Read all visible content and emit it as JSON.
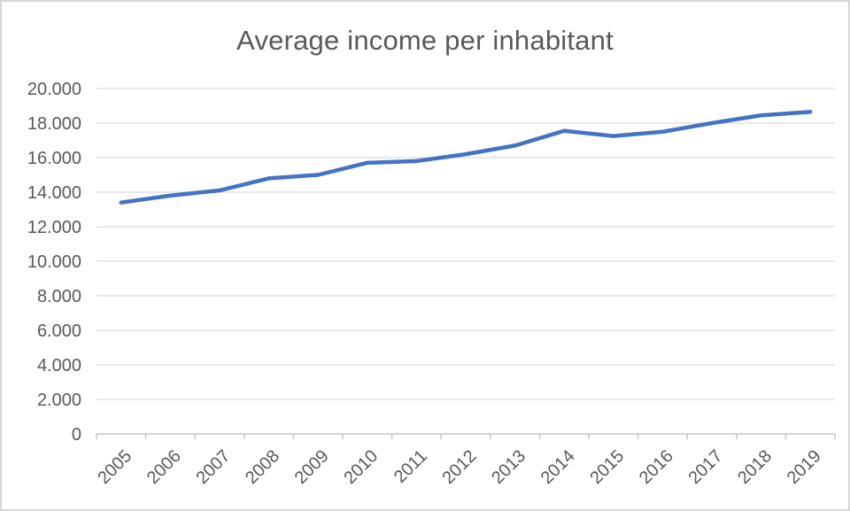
{
  "chart": {
    "title": "Average income per inhabitant"
  },
  "chart_data": {
    "type": "line",
    "title": "Average income per inhabitant",
    "categories": [
      "2005",
      "2006",
      "2007",
      "2008",
      "2009",
      "2010",
      "2011",
      "2012",
      "2013",
      "2014",
      "2015",
      "2016",
      "2017",
      "2018",
      "2019"
    ],
    "values": [
      13400,
      13800,
      14100,
      14800,
      15000,
      15700,
      15800,
      16200,
      16700,
      17550,
      17250,
      17500,
      18000,
      18450,
      18650
    ],
    "xlabel": "",
    "ylabel": "",
    "ylim": [
      0,
      20000
    ],
    "y_tick_step": 2000,
    "y_tick_labels": [
      "0",
      "2.000",
      "4.000",
      "6.000",
      "8.000",
      "10.000",
      "12.000",
      "14.000",
      "16.000",
      "18.000",
      "20.000"
    ],
    "grid": "horizontal",
    "legend_position": "none",
    "markers": "none",
    "x_label_rotation": -45,
    "series_color": "#4472C4",
    "text_color": "#595959",
    "gridline_color": "#D9D9D9",
    "axis_color": "#C6C6C6"
  }
}
